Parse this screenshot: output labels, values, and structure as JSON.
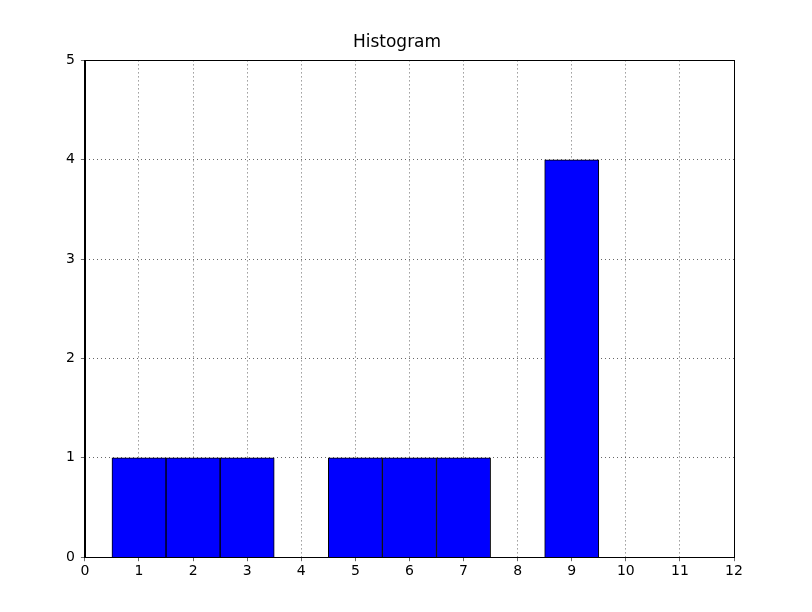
{
  "chart_data": {
    "type": "histogram",
    "title": "Histogram",
    "bins": [
      0.5,
      1.5,
      2.5,
      3.5,
      4.5,
      5.5,
      6.5,
      7.5,
      8.5,
      9.5,
      10.5,
      11.5
    ],
    "values": [
      1,
      1,
      1,
      0,
      1,
      1,
      1,
      0,
      4,
      0,
      0
    ],
    "color": "#0000ff",
    "xlim": [
      0,
      12
    ],
    "xticks": [
      0,
      1,
      2,
      3,
      4,
      5,
      6,
      7,
      8,
      9,
      10,
      11,
      12
    ],
    "ylim": [
      0,
      5
    ],
    "yticks": [
      0,
      1,
      2,
      3,
      4,
      5
    ],
    "grid": true
  }
}
